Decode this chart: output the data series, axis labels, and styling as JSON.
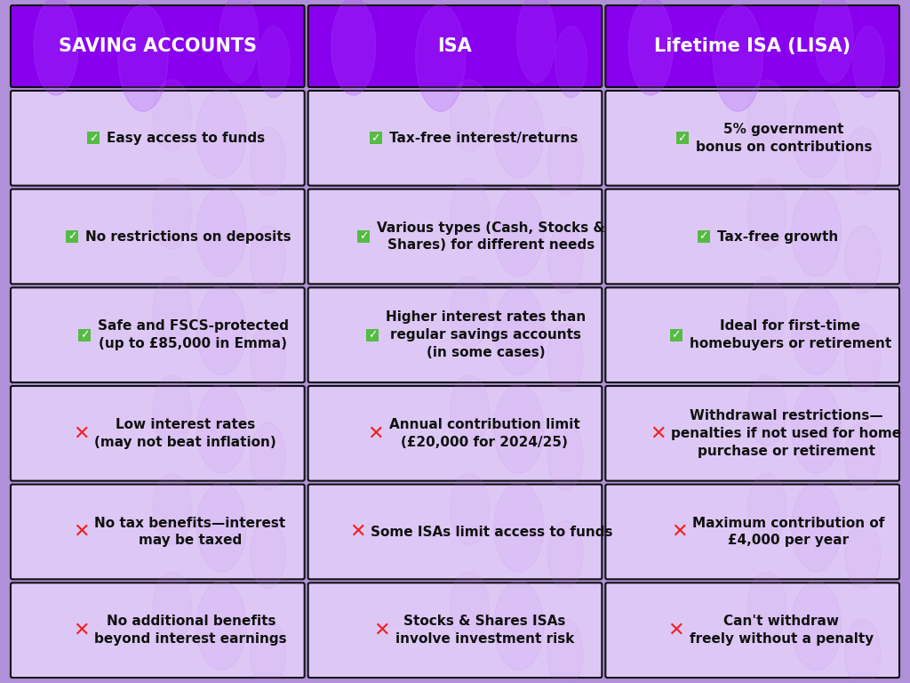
{
  "headers": [
    "SAVING ACCOUNTS",
    "ISA",
    "Lifetime ISA (LISA)"
  ],
  "header_bg": "#8800ee",
  "header_blob_color": "#aa44ff",
  "header_text_color": "#ffffff",
  "cell_bg": "#ddc8f5",
  "outer_bg": "#b090d8",
  "border_color": "#111111",
  "check_box_color": "#55bb44",
  "check_text_color": "#ffffff",
  "cross_color": "#ee2222",
  "text_color": "#111111",
  "rows": [
    {
      "type": "pro",
      "cells": [
        [
          "Easy access to funds",
          ""
        ],
        [
          "Tax-free interest/returns",
          ""
        ],
        [
          "5% government\nbonus on contributions",
          ""
        ]
      ]
    },
    {
      "type": "pro",
      "cells": [
        [
          "No restrictions on deposits",
          ""
        ],
        [
          "Various types (Cash, Stocks &\nShares) for different needs",
          ""
        ],
        [
          "Tax-free growth",
          ""
        ]
      ]
    },
    {
      "type": "pro",
      "cells": [
        [
          "Safe and FSCS-protected\n(up to £85,000 in Emma)",
          ""
        ],
        [
          "Higher interest rates than\nregular savings accounts\n(in some cases)",
          ""
        ],
        [
          "Ideal for first-time\nhomebuyers or retirement",
          ""
        ]
      ]
    },
    {
      "type": "con",
      "cells": [
        [
          "Low interest rates\n(may not beat inflation)",
          ""
        ],
        [
          "Annual contribution limit\n(£20,000 for 2024/25)",
          ""
        ],
        [
          "Withdrawal restrictions—\npenalties if not used for home\npurchase or retirement",
          ""
        ]
      ]
    },
    {
      "type": "con",
      "cells": [
        [
          "No tax benefits—interest\nmay be taxed",
          ""
        ],
        [
          "Some ISAs limit access to funds",
          ""
        ],
        [
          "Maximum contribution of\n£4,000 per year",
          ""
        ]
      ]
    },
    {
      "type": "con",
      "cells": [
        [
          "No additional benefits\nbeyond interest earnings",
          ""
        ],
        [
          "Stocks & Shares ISAs\ninvolve investment risk",
          ""
        ],
        [
          "Can't withdraw\nfreely without a penalty",
          ""
        ]
      ]
    }
  ],
  "figsize": [
    10.24,
    7.68
  ],
  "dpi": 100
}
